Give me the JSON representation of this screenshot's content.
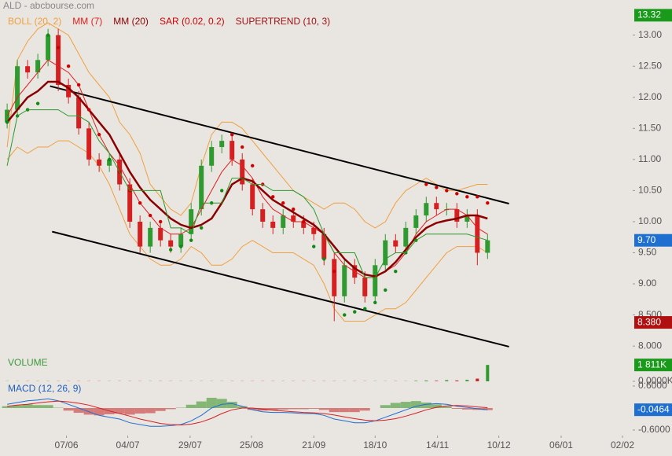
{
  "header": {
    "title": "ALD - abcbourse.com"
  },
  "chart_data": [
    {
      "type": "candlestick",
      "open": [
        11.6,
        11.8,
        12.5,
        12.4,
        12.6,
        13.0,
        12.2,
        12.0,
        11.5,
        11.0,
        10.9,
        11.0,
        10.6,
        10.0,
        9.6,
        9.9,
        9.7,
        9.6,
        9.8,
        10.2,
        10.9,
        11.2,
        11.3,
        11.0,
        10.6,
        10.2,
        10.0,
        9.9,
        10.1,
        10.0,
        9.9,
        9.8,
        9.4,
        8.8,
        9.3,
        9.1,
        8.8,
        9.3,
        9.7,
        9.6,
        9.9,
        10.1,
        10.3,
        10.2,
        10.2,
        10.0,
        10.1,
        9.5
      ],
      "high": [
        11.9,
        12.6,
        12.6,
        12.7,
        13.1,
        13.1,
        12.3,
        12.1,
        11.6,
        11.1,
        11.1,
        11.1,
        10.7,
        10.1,
        10.0,
        10.0,
        9.8,
        9.9,
        10.3,
        11.0,
        11.3,
        11.4,
        11.4,
        11.1,
        10.7,
        10.3,
        10.1,
        10.2,
        10.2,
        10.1,
        10.0,
        9.9,
        9.5,
        9.4,
        9.4,
        9.2,
        9.4,
        9.8,
        9.8,
        10.0,
        10.2,
        10.4,
        10.4,
        10.3,
        10.3,
        10.2,
        10.2,
        9.8
      ],
      "low": [
        11.5,
        11.7,
        12.3,
        12.3,
        12.5,
        12.1,
        11.9,
        11.4,
        10.9,
        10.8,
        10.8,
        10.5,
        9.9,
        9.5,
        9.5,
        9.6,
        9.5,
        9.5,
        9.7,
        10.1,
        10.8,
        11.1,
        10.9,
        10.5,
        10.1,
        9.9,
        9.8,
        9.8,
        9.9,
        9.8,
        9.7,
        9.3,
        8.4,
        8.7,
        9.0,
        8.7,
        8.7,
        9.2,
        9.5,
        9.5,
        9.8,
        10.0,
        10.1,
        10.1,
        9.9,
        9.9,
        9.3,
        9.4
      ],
      "close": [
        11.8,
        12.5,
        12.4,
        12.6,
        13.0,
        12.2,
        12.0,
        11.5,
        11.0,
        10.9,
        11.0,
        10.6,
        10.0,
        9.6,
        9.9,
        9.7,
        9.6,
        9.8,
        10.2,
        10.9,
        11.2,
        11.3,
        11.0,
        10.6,
        10.2,
        10.0,
        9.9,
        10.1,
        10.0,
        9.9,
        9.8,
        9.4,
        8.8,
        9.3,
        9.1,
        8.8,
        9.3,
        9.7,
        9.6,
        9.9,
        10.1,
        10.3,
        10.2,
        10.2,
        10.0,
        10.1,
        9.5,
        9.7
      ],
      "up_color": "#2f9a2f",
      "down_color": "#d42020",
      "series": [
        {
          "name": "BOLL (20, 2)",
          "color": "#f0a040",
          "upper": [
            11.2,
            12.6,
            12.9,
            13.1,
            13.2,
            13.1,
            13.0,
            12.7,
            12.4,
            12.2,
            12.0,
            11.6,
            11.4,
            11.1,
            10.6,
            10.4,
            10.2,
            10.1,
            10.3,
            10.9,
            11.4,
            11.6,
            11.6,
            11.5,
            11.3,
            11.1,
            10.9,
            10.7,
            10.5,
            10.4,
            10.3,
            10.2,
            10.3,
            10.3,
            10.2,
            10.0,
            9.9,
            10.0,
            10.3,
            10.5,
            10.6,
            10.7,
            10.6,
            10.5,
            10.5,
            10.55,
            10.6,
            10.6
          ],
          "lower": [
            11.0,
            11.2,
            11.1,
            11.2,
            11.2,
            11.3,
            11.3,
            11.2,
            11.1,
            10.9,
            10.6,
            10.2,
            9.8,
            9.6,
            9.4,
            9.3,
            9.3,
            9.4,
            9.6,
            9.5,
            9.3,
            9.3,
            9.4,
            9.6,
            9.7,
            9.6,
            9.5,
            9.5,
            9.5,
            9.4,
            9.3,
            9.0,
            8.6,
            8.4,
            8.4,
            8.4,
            8.5,
            8.6,
            8.6,
            8.7,
            8.9,
            9.1,
            9.3,
            9.5,
            9.6,
            9.6,
            9.6,
            9.5
          ]
        },
        {
          "name": "MM (7)",
          "color": "#e02020",
          "values": [
            11.7,
            12.0,
            12.2,
            12.4,
            12.6,
            12.5,
            12.4,
            12.2,
            11.8,
            11.4,
            11.1,
            10.9,
            10.6,
            10.3,
            10.1,
            9.9,
            9.8,
            9.8,
            9.9,
            10.2,
            10.5,
            10.8,
            11.0,
            10.9,
            10.7,
            10.4,
            10.2,
            10.1,
            10.0,
            10.0,
            9.9,
            9.8,
            9.5,
            9.3,
            9.2,
            9.1,
            9.1,
            9.2,
            9.3,
            9.5,
            9.8,
            10.0,
            10.1,
            10.2,
            10.2,
            10.1,
            9.9,
            9.8
          ]
        },
        {
          "name": "MM (20)",
          "color": "#8b0000",
          "width": 2.5,
          "values": [
            11.6,
            11.8,
            12.0,
            12.1,
            12.25,
            12.25,
            12.15,
            12.0,
            11.8,
            11.6,
            11.4,
            11.1,
            10.8,
            10.55,
            10.35,
            10.2,
            10.05,
            9.95,
            9.9,
            9.95,
            10.05,
            10.3,
            10.6,
            10.7,
            10.65,
            10.5,
            10.35,
            10.25,
            10.15,
            10.05,
            9.95,
            9.8,
            9.6,
            9.4,
            9.25,
            9.15,
            9.12,
            9.2,
            9.35,
            9.55,
            9.75,
            9.9,
            9.98,
            10.02,
            10.05,
            10.1,
            10.1,
            10.05
          ]
        },
        {
          "name": "SAR (0.02, 0.2)",
          "color": "#d00000",
          "below_color": "#108a10",
          "style": "dots",
          "values": [
            11.6,
            11.7,
            11.8,
            11.9,
            13.0,
            12.8,
            12.5,
            12.2,
            11.8,
            11.4,
            11.0,
            10.8,
            10.5,
            10.3,
            10.1,
            10.0,
            9.55,
            9.6,
            9.7,
            9.9,
            10.3,
            10.5,
            11.4,
            11.2,
            10.9,
            10.6,
            10.4,
            10.3,
            10.2,
            10.0,
            9.6,
            9.4,
            9.2,
            8.5,
            8.55,
            8.6,
            8.7,
            8.9,
            9.2,
            9.5,
            9.7,
            10.6,
            10.55,
            10.5,
            10.45,
            10.4,
            10.4,
            10.3
          ]
        },
        {
          "name": "SUPERTREND (10, 3)",
          "color": "#a01010",
          "line_color": "#2a9a2a",
          "values": [
            10.9,
            11.7,
            11.8,
            11.8,
            11.8,
            11.8,
            11.7,
            11.7,
            11.6,
            11.3,
            11.1,
            10.8,
            10.5,
            10.5,
            10.5,
            10.5,
            9.9,
            9.9,
            9.8,
            10.3,
            10.3,
            10.3,
            10.7,
            10.7,
            10.6,
            10.6,
            10.5,
            10.5,
            10.5,
            10.4,
            10.2,
            9.8,
            9.5,
            9.5,
            9.5,
            9.1,
            9.1,
            9.4,
            9.5,
            9.5,
            9.7,
            9.8,
            9.8,
            9.8,
            9.8,
            9.8,
            9.75,
            9.7
          ]
        }
      ],
      "trendlines": [
        {
          "x": [
            4.2,
            49.1
          ],
          "y": [
            12.18,
            10.29
          ]
        },
        {
          "x": [
            4.4,
            49.1
          ],
          "y": [
            9.84,
            7.99
          ]
        }
      ],
      "xlim": [
        -0.7,
        61.2
      ],
      "xticks": [
        {
          "value": 5.8,
          "label": "07/06"
        },
        {
          "value": 11.8,
          "label": "04/07"
        },
        {
          "value": 17.9,
          "label": "29/07"
        },
        {
          "value": 23.9,
          "label": "25/08"
        },
        {
          "value": 30.0,
          "label": "21/09"
        },
        {
          "value": 36.0,
          "label": "18/10"
        },
        {
          "value": 42.1,
          "label": "14/11"
        },
        {
          "value": 48.1,
          "label": "10/12"
        },
        {
          "value": 54.2,
          "label": "06/01"
        },
        {
          "value": 60.2,
          "label": "02/02"
        }
      ],
      "ylim": [
        7.85,
        13.35
      ],
      "yticks": [
        {
          "value": 8,
          "label": "8.000"
        },
        {
          "value": 8.5,
          "label": "8.500"
        },
        {
          "value": 9,
          "label": "9.00"
        },
        {
          "value": 9.5,
          "label": "9.50"
        },
        {
          "value": 10,
          "label": "10.00"
        },
        {
          "value": 10.5,
          "label": "10.50"
        },
        {
          "value": 11,
          "label": "11.00"
        },
        {
          "value": 11.5,
          "label": "11.50"
        },
        {
          "value": 12,
          "label": "12.00"
        },
        {
          "value": 12.5,
          "label": "12.50"
        },
        {
          "value": 13,
          "label": "13.00"
        }
      ],
      "markers": [
        {
          "value": 13.32,
          "label": "13.32",
          "color": "#1a9a1a"
        },
        {
          "value": 9.7,
          "label": "9.70",
          "color": "#1e6fd0"
        },
        {
          "value": 8.38,
          "label": "8.380",
          "color": "#b01010"
        }
      ]
    },
    {
      "type": "volume",
      "title": "VOLUME",
      "title_color": "#3a9a3a",
      "values": [
        20,
        20,
        20,
        20,
        20,
        20,
        20,
        20,
        20,
        20,
        20,
        20,
        20,
        20,
        20,
        20,
        20,
        20,
        20,
        20,
        20,
        20,
        20,
        20,
        20,
        20,
        20,
        20,
        20,
        20,
        20,
        20,
        20,
        20,
        20,
        20,
        20,
        20,
        20,
        20,
        50,
        80,
        60,
        120,
        90,
        150,
        300,
        1811
      ],
      "ylim": [
        0,
        2000
      ],
      "yticks": [
        {
          "value": 0,
          "label": "0.0000K"
        }
      ],
      "markers": [
        {
          "value": 1811,
          "label": "1 811K",
          "color": "#1a9a1a"
        }
      ]
    },
    {
      "type": "macd",
      "title": "MACD (12, 26, 9)",
      "title_color": "#1e5fc0",
      "macd": [
        0.1,
        0.15,
        0.2,
        0.22,
        0.25,
        0.2,
        0.1,
        0.0,
        -0.1,
        -0.2,
        -0.25,
        -0.3,
        -0.4,
        -0.45,
        -0.5,
        -0.5,
        -0.48,
        -0.45,
        -0.35,
        -0.2,
        0.0,
        0.1,
        0.12,
        0.05,
        -0.05,
        -0.1,
        -0.12,
        -0.12,
        -0.13,
        -0.15,
        -0.15,
        -0.2,
        -0.3,
        -0.35,
        -0.4,
        -0.4,
        -0.35,
        -0.25,
        -0.15,
        -0.05,
        0.05,
        0.1,
        0.12,
        0.1,
        0.05,
        0.02,
        -0.02,
        -0.0464
      ],
      "signal": [
        0.05,
        0.08,
        0.1,
        0.14,
        0.17,
        0.19,
        0.17,
        0.13,
        0.08,
        0.0,
        -0.08,
        -0.15,
        -0.22,
        -0.3,
        -0.36,
        -0.42,
        -0.45,
        -0.46,
        -0.44,
        -0.38,
        -0.28,
        -0.15,
        -0.05,
        0.0,
        0.0,
        -0.03,
        -0.06,
        -0.08,
        -0.1,
        -0.12,
        -0.13,
        -0.15,
        -0.19,
        -0.24,
        -0.29,
        -0.33,
        -0.35,
        -0.33,
        -0.29,
        -0.22,
        -0.14,
        -0.05,
        0.02,
        0.06,
        0.07,
        0.06,
        0.03,
        0.01
      ],
      "histogram": [
        0.05,
        0.07,
        0.1,
        0.08,
        0.08,
        0.01,
        -0.07,
        -0.13,
        -0.18,
        -0.2,
        -0.17,
        -0.15,
        -0.18,
        -0.15,
        -0.14,
        -0.08,
        -0.03,
        0.01,
        0.09,
        0.18,
        0.28,
        0.25,
        0.17,
        0.05,
        -0.05,
        -0.07,
        -0.06,
        -0.04,
        -0.03,
        -0.03,
        -0.02,
        -0.05,
        -0.11,
        -0.11,
        -0.11,
        -0.07,
        0.0,
        0.08,
        0.14,
        0.17,
        0.19,
        0.15,
        0.1,
        0.04,
        -0.02,
        -0.04,
        -0.05,
        -0.0564
      ],
      "macd_color": "#1e6fd0",
      "signal_color": "#d42020",
      "positive_color": "#6aaa5a",
      "negative_color": "#d06060",
      "ylim": [
        -0.6,
        0.6
      ],
      "yticks": [
        {
          "value": 0.6,
          "label": "0.6000"
        },
        {
          "value": -0.6,
          "label": "-0.6000"
        }
      ],
      "markers": [
        {
          "value": -0.0464,
          "label": "-0.0464",
          "color": "#1e6fd0"
        }
      ]
    }
  ]
}
